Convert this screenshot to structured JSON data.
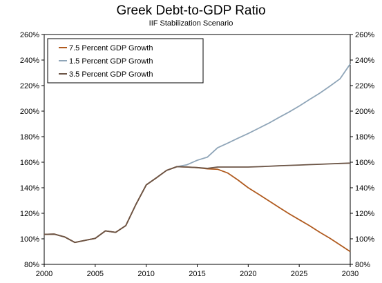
{
  "chart_data": {
    "type": "line",
    "title": "Greek Debt-to-GDP Ratio",
    "subtitle": "IIF Stabilization Scenario",
    "xlabel": "",
    "ylabel": "",
    "xlim": [
      2000,
      2030
    ],
    "ylim": [
      80,
      260
    ],
    "x_ticks": [
      "2000",
      "2005",
      "2010",
      "2015",
      "2020",
      "2025",
      "2030"
    ],
    "y_ticks": [
      "80%",
      "100%",
      "120%",
      "140%",
      "160%",
      "180%",
      "200%",
      "220%",
      "240%",
      "260%"
    ],
    "y_ticks_right": [
      "80%",
      "100%",
      "120%",
      "140%",
      "160%",
      "180%",
      "200%",
      "220%",
      "240%",
      "260%"
    ],
    "grid": false,
    "legend_position": "top-left",
    "series": [
      {
        "name": "7.5 Percent GDP Growth",
        "color": "#b05a1e",
        "x": [
          2000,
          2001,
          2002,
          2003,
          2004,
          2005,
          2006,
          2007,
          2008,
          2009,
          2010,
          2011,
          2012,
          2013,
          2014,
          2015,
          2016,
          2017,
          2018,
          2019,
          2020,
          2021,
          2022,
          2023,
          2024,
          2025,
          2026,
          2027,
          2028,
          2029,
          2030
        ],
        "values": [
          103.5,
          103.7,
          101.5,
          97.2,
          98.8,
          100.3,
          106.2,
          105.1,
          110.3,
          127.1,
          142.2,
          147.8,
          153.6,
          156.5,
          156.2,
          155.8,
          154.8,
          154.5,
          151.5,
          146,
          140,
          135,
          129.9,
          124.7,
          119.7,
          115,
          110.3,
          105.2,
          100.5,
          95.3,
          90
        ]
      },
      {
        "name": "1.5 Percent GDP Growth",
        "color": "#8fa5b8",
        "x": [
          2000,
          2001,
          2002,
          2003,
          2004,
          2005,
          2006,
          2007,
          2008,
          2009,
          2010,
          2011,
          2012,
          2013,
          2014,
          2015,
          2016,
          2017,
          2018,
          2019,
          2020,
          2021,
          2022,
          2023,
          2024,
          2025,
          2026,
          2027,
          2028,
          2029,
          2030
        ],
        "values": [
          103.5,
          103.7,
          101.5,
          97.2,
          98.8,
          100.3,
          106.2,
          105.1,
          110.3,
          127.1,
          142.2,
          147.8,
          153.6,
          156.5,
          158,
          161.5,
          164,
          171.3,
          175,
          178.8,
          182.5,
          186.5,
          190.5,
          195,
          199.3,
          204,
          209,
          214,
          219.5,
          225.3,
          237
        ]
      },
      {
        "name": "3.5 Percent GDP Growth",
        "color": "#6b5445",
        "x": [
          2000,
          2001,
          2002,
          2003,
          2004,
          2005,
          2006,
          2007,
          2008,
          2009,
          2010,
          2011,
          2012,
          2013,
          2014,
          2015,
          2016,
          2017,
          2018,
          2019,
          2020,
          2021,
          2022,
          2023,
          2024,
          2025,
          2026,
          2027,
          2028,
          2029,
          2030
        ],
        "values": [
          103.5,
          103.7,
          101.5,
          97.2,
          98.8,
          100.3,
          106.2,
          105.1,
          110.3,
          127.1,
          142.2,
          147.8,
          153.6,
          156.5,
          156.2,
          155.8,
          155.2,
          156.2,
          156.2,
          156.2,
          156.2,
          156.5,
          156.8,
          157.2,
          157.5,
          157.8,
          158.1,
          158.4,
          158.7,
          159,
          159.3
        ]
      }
    ]
  }
}
